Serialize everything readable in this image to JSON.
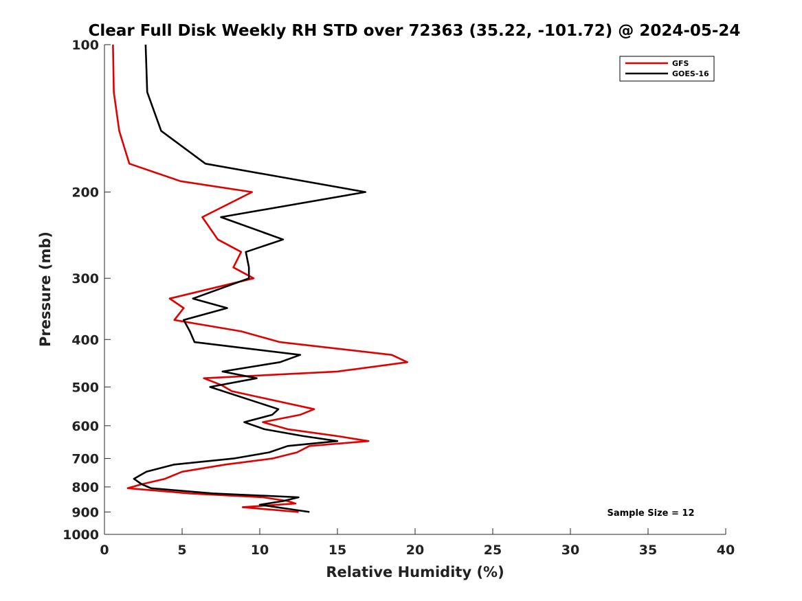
{
  "chart_data": {
    "type": "line",
    "title": "Clear Full Disk Weekly RH STD over 72363 (35.22, -101.72) @ 2024-05-24",
    "xlabel": "Relative Humidity (%)",
    "ylabel": "Pressure (mb)",
    "xlim": [
      0,
      40
    ],
    "ylim": [
      100,
      1000
    ],
    "yscale": "log",
    "y_reversed": true,
    "xticks": [
      0,
      5,
      10,
      15,
      20,
      25,
      30,
      35,
      40
    ],
    "yticks": [
      100,
      200,
      300,
      400,
      500,
      600,
      700,
      800,
      900,
      1000
    ],
    "legend_position": "top-right",
    "annotation": "Sample Size = 12",
    "series": [
      {
        "name": "GFS",
        "color": "#e00000",
        "points": [
          [
            0.55,
            100
          ],
          [
            0.6,
            125
          ],
          [
            0.95,
            150
          ],
          [
            1.6,
            175
          ],
          [
            4.9,
            190
          ],
          [
            9.5,
            200
          ],
          [
            6.3,
            225
          ],
          [
            7.3,
            250
          ],
          [
            8.8,
            265
          ],
          [
            8.3,
            285
          ],
          [
            9.6,
            300
          ],
          [
            4.2,
            330
          ],
          [
            5.1,
            345
          ],
          [
            4.5,
            365
          ],
          [
            8.8,
            385
          ],
          [
            11.3,
            405
          ],
          [
            18.5,
            430
          ],
          [
            19.5,
            445
          ],
          [
            15.0,
            465
          ],
          [
            6.4,
            480
          ],
          [
            7.5,
            495
          ],
          [
            8.2,
            510
          ],
          [
            13.5,
            555
          ],
          [
            12.6,
            570
          ],
          [
            10.2,
            590
          ],
          [
            11.8,
            610
          ],
          [
            15.0,
            630
          ],
          [
            17.0,
            645
          ],
          [
            13.2,
            660
          ],
          [
            12.4,
            680
          ],
          [
            10.8,
            700
          ],
          [
            7.8,
            720
          ],
          [
            5.0,
            745
          ],
          [
            3.9,
            770
          ],
          [
            2.4,
            790
          ],
          [
            1.5,
            805
          ],
          [
            5.5,
            825
          ],
          [
            10.2,
            840
          ],
          [
            11.8,
            855
          ],
          [
            12.3,
            865
          ],
          [
            8.9,
            880
          ],
          [
            12.5,
            900
          ]
        ]
      },
      {
        "name": "GOES-16",
        "color": "#000000",
        "points": [
          [
            2.65,
            100
          ],
          [
            2.75,
            125
          ],
          [
            3.65,
            150
          ],
          [
            6.5,
            175
          ],
          [
            16.8,
            200
          ],
          [
            7.5,
            225
          ],
          [
            11.5,
            250
          ],
          [
            9.1,
            265
          ],
          [
            9.3,
            285
          ],
          [
            9.3,
            300
          ],
          [
            5.7,
            330
          ],
          [
            7.9,
            345
          ],
          [
            5.1,
            365
          ],
          [
            5.5,
            385
          ],
          [
            5.8,
            405
          ],
          [
            12.6,
            430
          ],
          [
            11.3,
            445
          ],
          [
            7.6,
            465
          ],
          [
            9.8,
            480
          ],
          [
            6.8,
            500
          ],
          [
            11.2,
            555
          ],
          [
            10.8,
            570
          ],
          [
            9.0,
            590
          ],
          [
            10.3,
            610
          ],
          [
            12.8,
            630
          ],
          [
            15.0,
            645
          ],
          [
            11.8,
            660
          ],
          [
            10.6,
            680
          ],
          [
            8.3,
            700
          ],
          [
            4.5,
            720
          ],
          [
            2.7,
            745
          ],
          [
            1.9,
            770
          ],
          [
            2.4,
            790
          ],
          [
            3.0,
            805
          ],
          [
            7.0,
            825
          ],
          [
            12.5,
            840
          ],
          [
            11.5,
            855
          ],
          [
            10.0,
            870
          ],
          [
            13.2,
            900
          ]
        ]
      }
    ]
  }
}
